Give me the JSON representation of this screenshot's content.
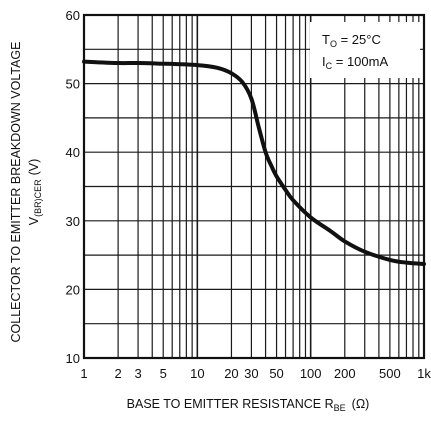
{
  "chart_data": {
    "type": "line",
    "xscale": "log",
    "xlim": [
      1,
      1000
    ],
    "ylim": [
      10,
      60
    ],
    "grid": true,
    "x_tick_labels": [
      "1",
      "2",
      "3",
      "5",
      "10",
      "20",
      "30",
      "50",
      "100",
      "200",
      "500",
      "1k"
    ],
    "x_tick_values": [
      1,
      2,
      3,
      5,
      10,
      20,
      30,
      50,
      100,
      200,
      500,
      1000
    ],
    "y_tick_labels": [
      "10",
      "20",
      "30",
      "40",
      "50",
      "60"
    ],
    "y_tick_values": [
      10,
      20,
      30,
      40,
      50,
      60
    ],
    "xlabel_main": "BASE TO EMITTER RESISTANCE R",
    "xlabel_sub": "BE",
    "xlabel_unit": "(Ω)",
    "ylabel_line1": "COLLECTOR TO EMITTER BREAKDOWN VOLTAGE",
    "ylabel_line2_main": "V",
    "ylabel_line2_sub": "(BR)CER",
    "ylabel_line2_unit": "(V)",
    "conditions": [
      {
        "main": "T",
        "sub": "O",
        "rest": " = 25°C"
      },
      {
        "main": "I",
        "sub": "C",
        "rest": " = 100mA"
      }
    ],
    "series": [
      {
        "x": [
          1,
          2,
          3,
          5,
          10,
          15,
          20,
          25,
          30,
          35,
          40,
          45,
          50,
          60,
          70,
          100,
          150,
          200,
          300,
          500,
          700,
          1000
        ],
        "y": [
          53.2,
          53.0,
          53.0,
          52.9,
          52.7,
          52.3,
          51.5,
          50.2,
          47.8,
          43.5,
          40.0,
          38.0,
          36.5,
          34.5,
          33.0,
          30.5,
          28.5,
          27.0,
          25.5,
          24.3,
          23.9,
          23.7
        ]
      }
    ],
    "colors": {
      "line": "#111111",
      "grid": "#1a1a1a",
      "background": "#ffffff"
    }
  }
}
